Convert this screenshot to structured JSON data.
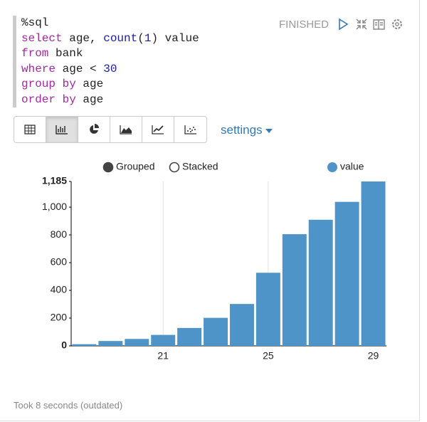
{
  "paragraph": {
    "status": "FINISHED",
    "code": [
      [
        "%sql"
      ],
      [
        "select",
        " age, ",
        "count",
        "(",
        "1",
        ") value"
      ],
      [
        "from",
        " bank"
      ],
      [
        "where",
        " age < ",
        "30"
      ],
      [
        "group by",
        " age"
      ],
      [
        "order by",
        " age"
      ]
    ],
    "settings": "settings",
    "footer": "Took 8 seconds (outdated)"
  },
  "chart_controls": {
    "modes": [
      "Grouped",
      "Stacked"
    ],
    "selected": 0
  },
  "chart_data": {
    "type": "bar",
    "categories": [
      null,
      null,
      null,
      "21",
      null,
      null,
      null,
      "25",
      null,
      null,
      null,
      "29"
    ],
    "series": [
      {
        "name": "value",
        "color": "#4f94c9",
        "values": [
          12,
          35,
          50,
          79,
          129,
          202,
          302,
          527,
          805,
          909,
          1038,
          1185
        ]
      }
    ],
    "ylim": [
      0,
      1185
    ],
    "yticks": [
      0,
      200,
      400,
      600,
      800,
      {
        "value": 1000,
        "label": "1,000"
      },
      {
        "value": 1185,
        "label": "1,185"
      }
    ],
    "grid": true
  }
}
